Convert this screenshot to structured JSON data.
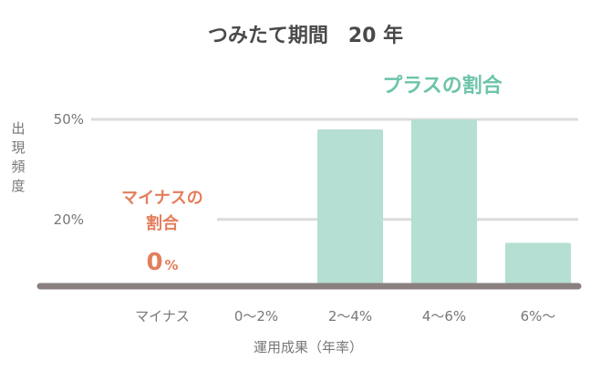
{
  "chart_data": {
    "type": "bar",
    "title": "つみたて期間　20 年",
    "xlabel": "運用成果（年率）",
    "ylabel": "出現頻度",
    "categories": [
      "マイナス",
      "0〜2%",
      "2〜4%",
      "4〜6%",
      "6%〜"
    ],
    "values": [
      0,
      0,
      47,
      50,
      13
    ],
    "yticks": [
      {
        "value": 20,
        "label": "20%"
      },
      {
        "value": 50,
        "label": "50%"
      }
    ],
    "ylim": [
      0,
      50
    ],
    "grid": true,
    "colors": {
      "bar": "#b5dfd2",
      "grid": "#dcdcdc",
      "baseline": "#8a8080",
      "plus": "#6cc4aa",
      "minus": "#e37e5c",
      "title": "#4a4a4a",
      "axis_text": "#777777"
    },
    "annotations": {
      "plus_label": "プラスの割合",
      "minus_label_line1": "マイナスの",
      "minus_label_line2": "割合",
      "minus_value": "0",
      "minus_unit": "%"
    }
  }
}
